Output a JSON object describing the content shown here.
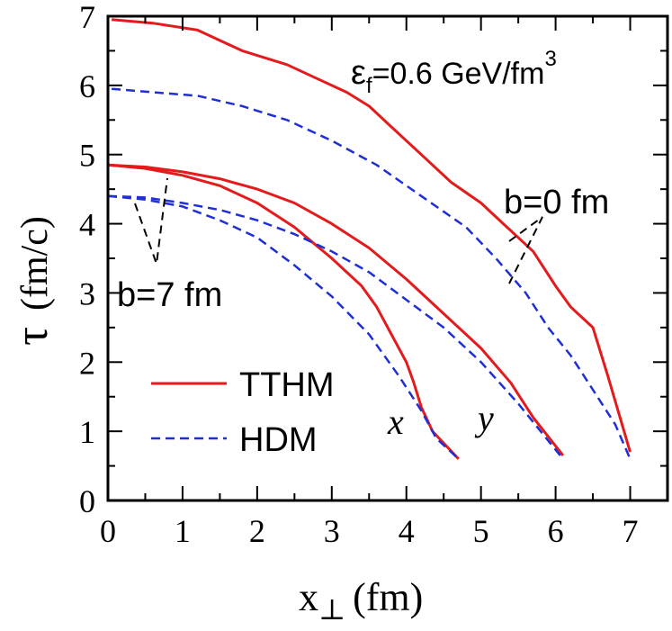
{
  "chart_data": {
    "type": "line",
    "title": "",
    "xlabel_main": "x",
    "xlabel_sub": "⊥",
    "xlabel_unit": "(fm)",
    "ylabel_symbol": "τ",
    "ylabel_unit": "(fm/c)",
    "xlim": [
      0,
      7.5
    ],
    "ylim": [
      0,
      7
    ],
    "xticks": [
      0,
      1,
      2,
      3,
      4,
      5,
      6,
      7
    ],
    "yticks": [
      0,
      1,
      2,
      3,
      4,
      5,
      6,
      7
    ],
    "grid": false,
    "legend": {
      "placement": "lower-left",
      "entries": [
        {
          "label": "TTHM",
          "color": "#e41a1c",
          "style": "solid"
        },
        {
          "label": "HDM",
          "color": "#1f2fd6",
          "style": "dashed"
        }
      ]
    },
    "annotations": {
      "energy_main": "ε",
      "energy_sub": "f",
      "energy_rest": "=0.6 GeV/fm",
      "energy_sup": "3",
      "b0": "b=0 fm",
      "b7": "b=7 fm",
      "dir_x": "x",
      "dir_y": "y"
    },
    "series": [
      {
        "name": "TTHM b=0",
        "model": "TTHM",
        "color": "#e41a1c",
        "style": "solid",
        "x": [
          0.05,
          0.6,
          1.2,
          1.8,
          2.4,
          2.8,
          3.2,
          3.5,
          3.8,
          4.2,
          4.6,
          5.0,
          5.3,
          5.7,
          6.0,
          6.2,
          6.5,
          6.7,
          7.0
        ],
        "y": [
          6.95,
          6.9,
          6.8,
          6.5,
          6.3,
          6.1,
          5.9,
          5.7,
          5.4,
          5.0,
          4.6,
          4.3,
          4.0,
          3.6,
          3.1,
          2.8,
          2.5,
          1.8,
          0.7
        ]
      },
      {
        "name": "HDM b=0",
        "model": "HDM",
        "color": "#1f2fd6",
        "style": "dashed",
        "x": [
          0.05,
          0.6,
          1.2,
          1.8,
          2.4,
          3.0,
          3.6,
          4.2,
          4.8,
          5.2,
          5.6,
          5.9,
          6.2,
          6.5,
          6.8,
          7.0
        ],
        "y": [
          5.95,
          5.9,
          5.85,
          5.7,
          5.5,
          5.2,
          4.85,
          4.4,
          3.95,
          3.5,
          3.0,
          2.5,
          2.1,
          1.6,
          1.1,
          0.6
        ]
      },
      {
        "name": "TTHM b=7 y",
        "model": "TTHM",
        "color": "#e41a1c",
        "style": "solid",
        "x": [
          0.0,
          0.5,
          1.0,
          1.5,
          2.0,
          2.5,
          3.0,
          3.5,
          4.0,
          4.5,
          5.0,
          5.4,
          5.7,
          6.1
        ],
        "y": [
          4.85,
          4.82,
          4.75,
          4.65,
          4.5,
          4.3,
          4.0,
          3.65,
          3.2,
          2.7,
          2.2,
          1.7,
          1.2,
          0.65
        ]
      },
      {
        "name": "TTHM b=7 x",
        "model": "TTHM",
        "color": "#e41a1c",
        "style": "solid",
        "x": [
          0.0,
          0.5,
          1.0,
          1.5,
          2.0,
          2.5,
          3.0,
          3.4,
          3.6,
          3.8,
          4.0,
          4.1,
          4.2,
          4.35,
          4.7
        ],
        "y": [
          4.85,
          4.8,
          4.7,
          4.55,
          4.3,
          3.95,
          3.5,
          3.1,
          2.8,
          2.4,
          2.0,
          1.7,
          1.35,
          1.0,
          0.6
        ]
      },
      {
        "name": "HDM b=7 y",
        "model": "HDM",
        "color": "#1f2fd6",
        "style": "dashed",
        "x": [
          0.0,
          0.5,
          1.0,
          1.5,
          2.0,
          2.5,
          3.0,
          3.5,
          4.0,
          4.5,
          5.0,
          5.5,
          6.1
        ],
        "y": [
          4.4,
          4.38,
          4.3,
          4.2,
          4.05,
          3.85,
          3.6,
          3.3,
          2.9,
          2.5,
          2.0,
          1.4,
          0.6
        ]
      },
      {
        "name": "HDM b=7 x",
        "model": "HDM",
        "color": "#1f2fd6",
        "style": "dashed",
        "x": [
          0.0,
          0.5,
          1.0,
          1.5,
          2.0,
          2.5,
          3.0,
          3.5,
          3.9,
          4.2,
          4.4,
          4.7
        ],
        "y": [
          4.4,
          4.35,
          4.25,
          4.05,
          3.8,
          3.4,
          2.95,
          2.4,
          1.8,
          1.3,
          0.9,
          0.6
        ]
      }
    ]
  }
}
